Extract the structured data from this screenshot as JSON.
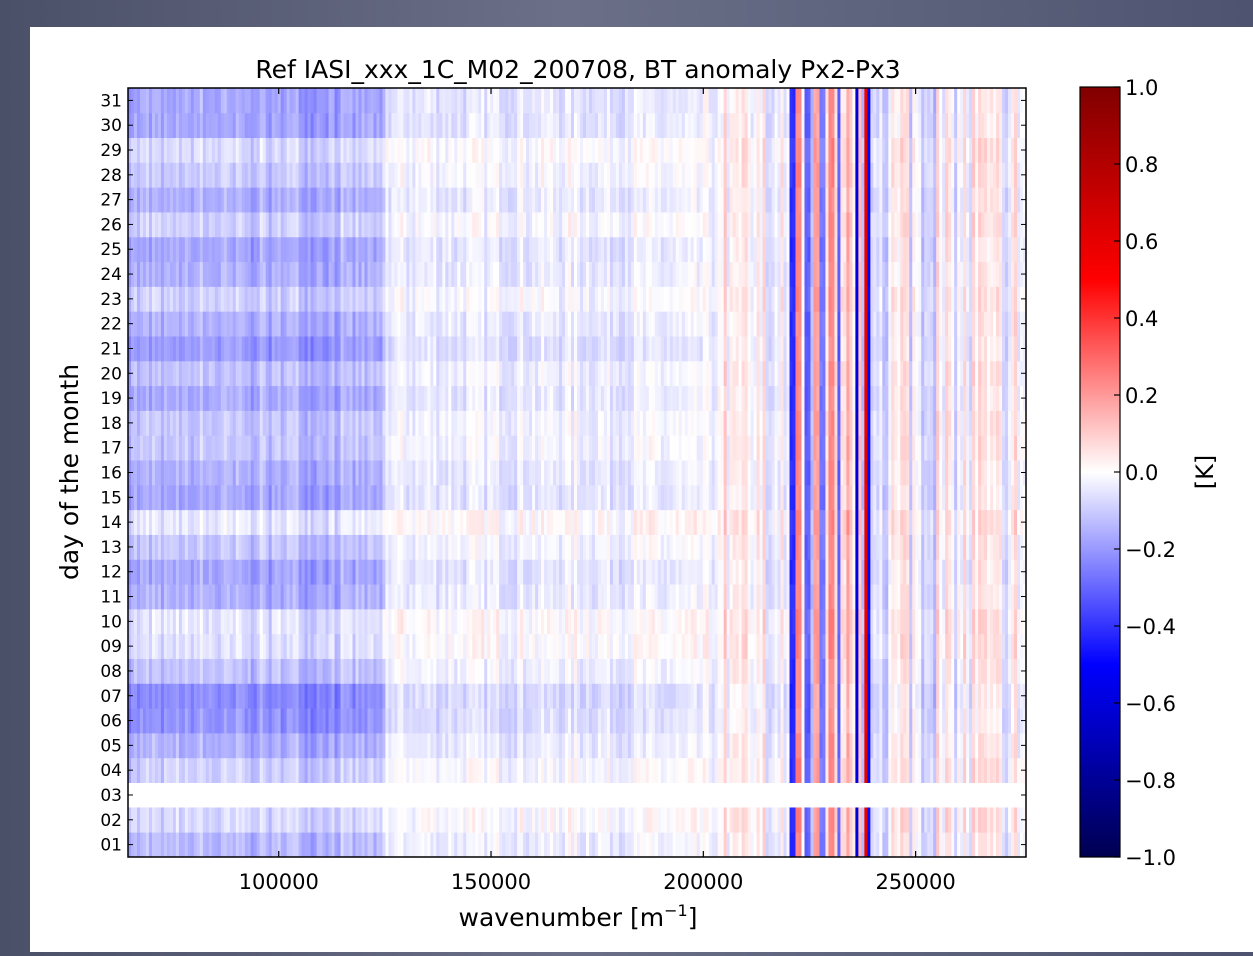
{
  "chart_data": {
    "type": "heatmap",
    "title": "Ref IASI_xxx_1C_M02_200708, BT anomaly Px2-Px3",
    "xlabel_main": "wavenumber [m",
    "xlabel_sup": "−1",
    "xlabel_end": "]",
    "ylabel": "day of the month",
    "xlim": [
      64500,
      276000
    ],
    "x_ticks": [
      100000,
      150000,
      200000,
      250000
    ],
    "x_tick_labels": [
      "100000",
      "150000",
      "200000",
      "250000"
    ],
    "y_tick_labels": [
      "01",
      "02",
      "03",
      "04",
      "05",
      "06",
      "07",
      "08",
      "09",
      "10",
      "11",
      "12",
      "13",
      "14",
      "15",
      "16",
      "17",
      "18",
      "19",
      "20",
      "21",
      "22",
      "23",
      "24",
      "25",
      "26",
      "27",
      "28",
      "29",
      "30",
      "31"
    ],
    "missing_days": [
      "03"
    ],
    "colorbar": {
      "label": "[K]",
      "vmin": -1.0,
      "vmax": 1.0,
      "colormap": "seismic",
      "tick_values": [
        1.0,
        0.8,
        0.6,
        0.4,
        0.2,
        0.0,
        -0.2,
        -0.4,
        -0.6,
        -0.8,
        -1.0
      ],
      "tick_labels": [
        "1.0",
        "0.8",
        "0.6",
        "0.4",
        "0.2",
        "0.0",
        "−0.2",
        "−0.4",
        "−0.6",
        "−0.8",
        "−1.0"
      ]
    },
    "day_offsets": [
      -0.06,
      0.0,
      0.0,
      -0.02,
      -0.08,
      -0.14,
      -0.15,
      -0.05,
      0.01,
      0.02,
      -0.08,
      -0.1,
      -0.04,
      0.03,
      -0.1,
      -0.08,
      -0.04,
      -0.04,
      -0.09,
      -0.05,
      -0.12,
      -0.08,
      -0.02,
      -0.08,
      -0.1,
      -0.02,
      -0.08,
      -0.03,
      0.0,
      -0.1,
      -0.1
    ],
    "spectral_features": [
      {
        "wavenumber": 221000,
        "anomaly": -0.4
      },
      {
        "wavenumber": 222500,
        "anomaly": 0.25
      },
      {
        "wavenumber": 224500,
        "anomaly": -0.3
      },
      {
        "wavenumber": 226500,
        "anomaly": 0.2
      },
      {
        "wavenumber": 228000,
        "anomaly": -0.25
      },
      {
        "wavenumber": 230000,
        "anomaly": 0.25
      },
      {
        "wavenumber": 232000,
        "anomaly": -0.3
      },
      {
        "wavenumber": 234000,
        "anomaly": 0.2
      },
      {
        "wavenumber": 236200,
        "anomaly": -0.6
      },
      {
        "wavenumber": 238200,
        "anomaly": 0.6
      },
      {
        "wavenumber": 238900,
        "anomaly": -0.5
      }
    ]
  }
}
